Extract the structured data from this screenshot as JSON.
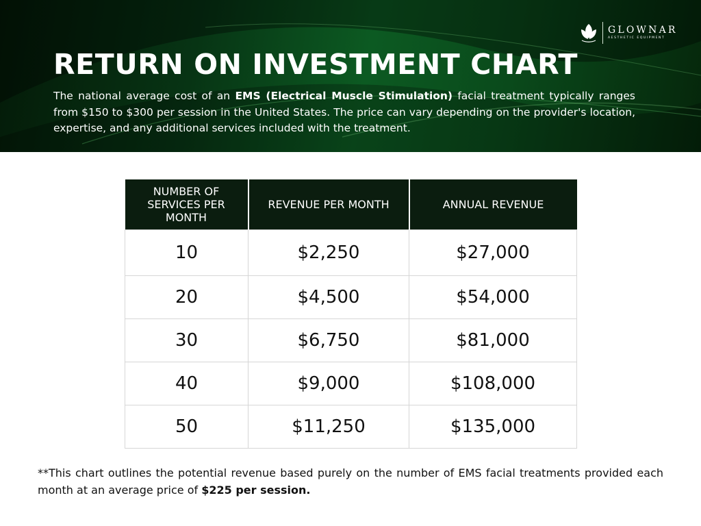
{
  "header": {
    "title": "RETURN ON INVESTMENT CHART",
    "intro_before": "The national average cost of an ",
    "intro_bold": "EMS (Electrical Muscle Stimulation)",
    "intro_after": " facial treatment typically ranges from $150 to $300 per session in the United States. The price can vary depending on the provider's location, expertise, and any additional services included with the treatment.",
    "background_colors": [
      "#041a08",
      "#0c5a22"
    ]
  },
  "brand": {
    "name": "GLOWNAR",
    "tagline": "AESTHETIC EQUIPMENT",
    "icon": "lotus-leaf-icon"
  },
  "table": {
    "headers": [
      "NUMBER OF SERVICES PER MONTH",
      "REVENUE PER MONTH",
      "ANNUAL REVENUE"
    ],
    "rows": [
      [
        "10",
        "$2,250",
        "$27,000"
      ],
      [
        "20",
        "$4,500",
        "$54,000"
      ],
      [
        "30",
        "$6,750",
        "$81,000"
      ],
      [
        "40",
        "$9,000",
        "$108,000"
      ],
      [
        "50",
        "$11,250",
        "$135,000"
      ]
    ],
    "header_bg": "#0b1d0f"
  },
  "footnote": {
    "text": "**This chart outlines the potential revenue based purely on the number of EMS facial treatments provided each month at an average price of ",
    "bold": "$225 per session."
  }
}
